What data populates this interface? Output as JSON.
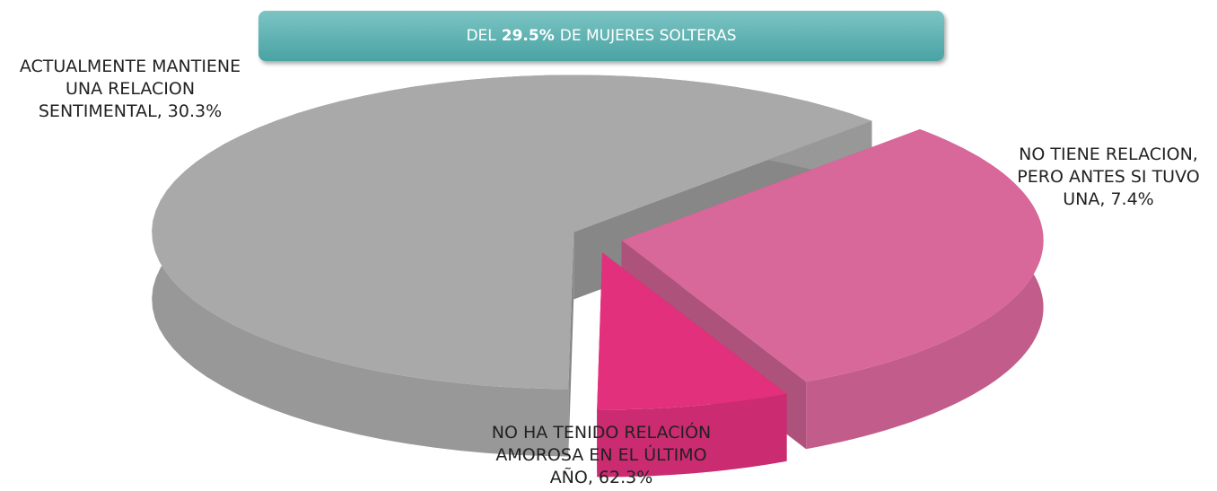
{
  "chart_data": {
    "type": "pie3d",
    "title": [
      "DEL",
      "29.5%",
      "DE  MUJERES SOLTERAS"
    ],
    "values": [
      30.3,
      7.4,
      62.3
    ],
    "value_labels": [
      "ACTUALMENTE MANTIENE UNA RELACION SENTIMENTAL, 30.3%",
      "NO TIENE RELACION, PERO ANTES SI TUVO UNA, 7.4%",
      "NO HA TENIDO RELACIÓN AMOROSA EN EL ÚLTIMO AÑO, 62.3%"
    ],
    "colors": [
      "#d8679a",
      "#e2307c",
      "#a9a9a9"
    ]
  }
}
